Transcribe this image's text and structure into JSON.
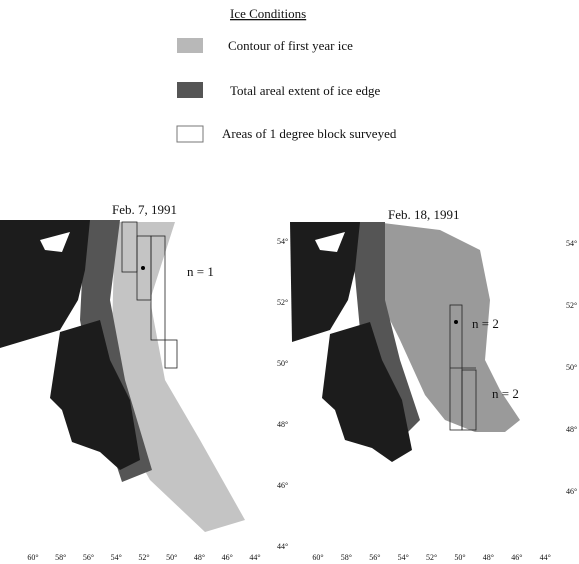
{
  "legend": {
    "title": "Ice Conditions",
    "items": [
      "Contour of first year ice",
      "Total areal extent of ice edge",
      "Areas of 1 degree block surveyed"
    ]
  },
  "panels": [
    {
      "title": "Feb. 7, 1991",
      "annotations": [
        "n = 1"
      ],
      "lon_labels": [
        "60°",
        "58°",
        "56°",
        "54°",
        "52°",
        "50°",
        "48°",
        "46°",
        "44°"
      ]
    },
    {
      "title": "Feb. 18, 1991",
      "annotations": [
        "n = 2",
        "n = 2"
      ],
      "lon_labels": [
        "60°",
        "58°",
        "56°",
        "54°",
        "52°",
        "50°",
        "48°",
        "46°",
        "44°"
      ],
      "lat_labels_left": [
        "54°",
        "52°",
        "50°",
        "48°",
        "46°",
        "44°"
      ],
      "lat_labels_right": [
        "54°",
        "52°",
        "50°",
        "48°",
        "46°"
      ]
    }
  ]
}
